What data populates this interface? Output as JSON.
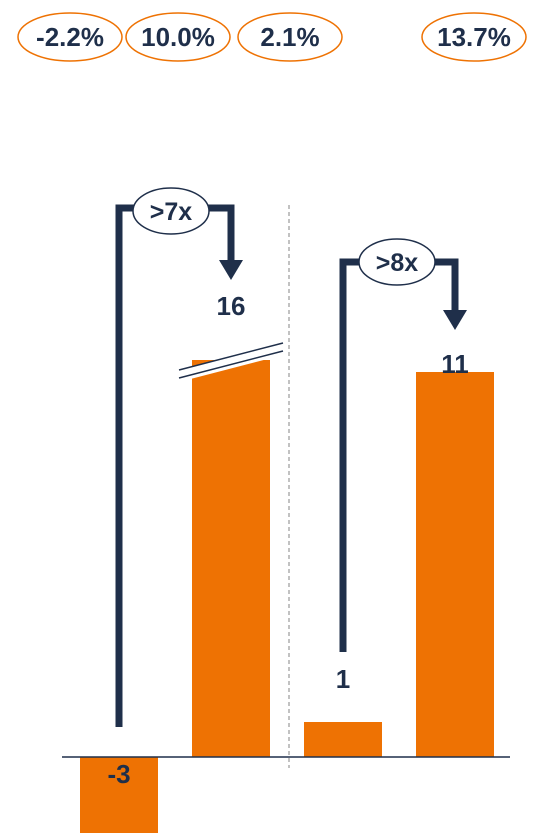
{
  "chart_data": {
    "type": "bar",
    "categories": [
      "",
      "",
      "",
      ""
    ],
    "values": [
      -3,
      16,
      1,
      11
    ],
    "value_labels": [
      "-3",
      "16",
      "1",
      "11"
    ],
    "growth_rates": [
      "-2.2%",
      "10.0%",
      "2.1%",
      "13.7%"
    ],
    "multipliers": [
      {
        "label": ">7x",
        "from_index": 0,
        "to_index": 1
      },
      {
        "label": ">8x",
        "from_index": 2,
        "to_index": 3
      }
    ],
    "axis_break_on": [
      1
    ],
    "divider_after_index": 1,
    "ylim": [
      -3,
      16
    ],
    "grid": false,
    "legend": "none",
    "title": "",
    "xlabel": "",
    "ylabel": ""
  },
  "colors": {
    "bar": "#ee7203",
    "pill_border": "#ee7203",
    "text": "#1f2f4a",
    "connector": "#1f2f4a",
    "axis": "#1f2f4a",
    "divider": "#999999"
  }
}
